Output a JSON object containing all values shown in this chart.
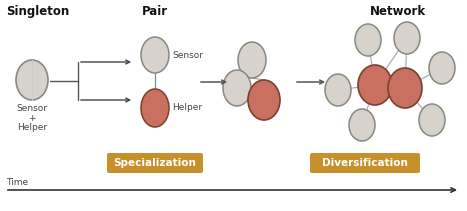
{
  "background_color": "#ffffff",
  "title_singleton": "Singleton",
  "title_pair": "Pair",
  "title_network": "Network",
  "label_sensor_helper": "Sensor\n+\nHelper",
  "label_sensor": "Sensor",
  "label_helper": "Helper",
  "label_specialization": "Specialization",
  "label_diversification": "Diversification",
  "label_time": "Time",
  "color_helper": "#c97060",
  "color_sensor": "#d8d2cc",
  "color_edge_helper": "#7a4030",
  "color_edge_sensor": "#888880",
  "color_line": "#888888",
  "color_arrow": "#444444",
  "color_badge_bg": "#c8902a",
  "color_badge_text": "#ffffff",
  "title_fontsize": 8.5,
  "label_fontsize": 6.5,
  "badge_fontsize": 7.5
}
